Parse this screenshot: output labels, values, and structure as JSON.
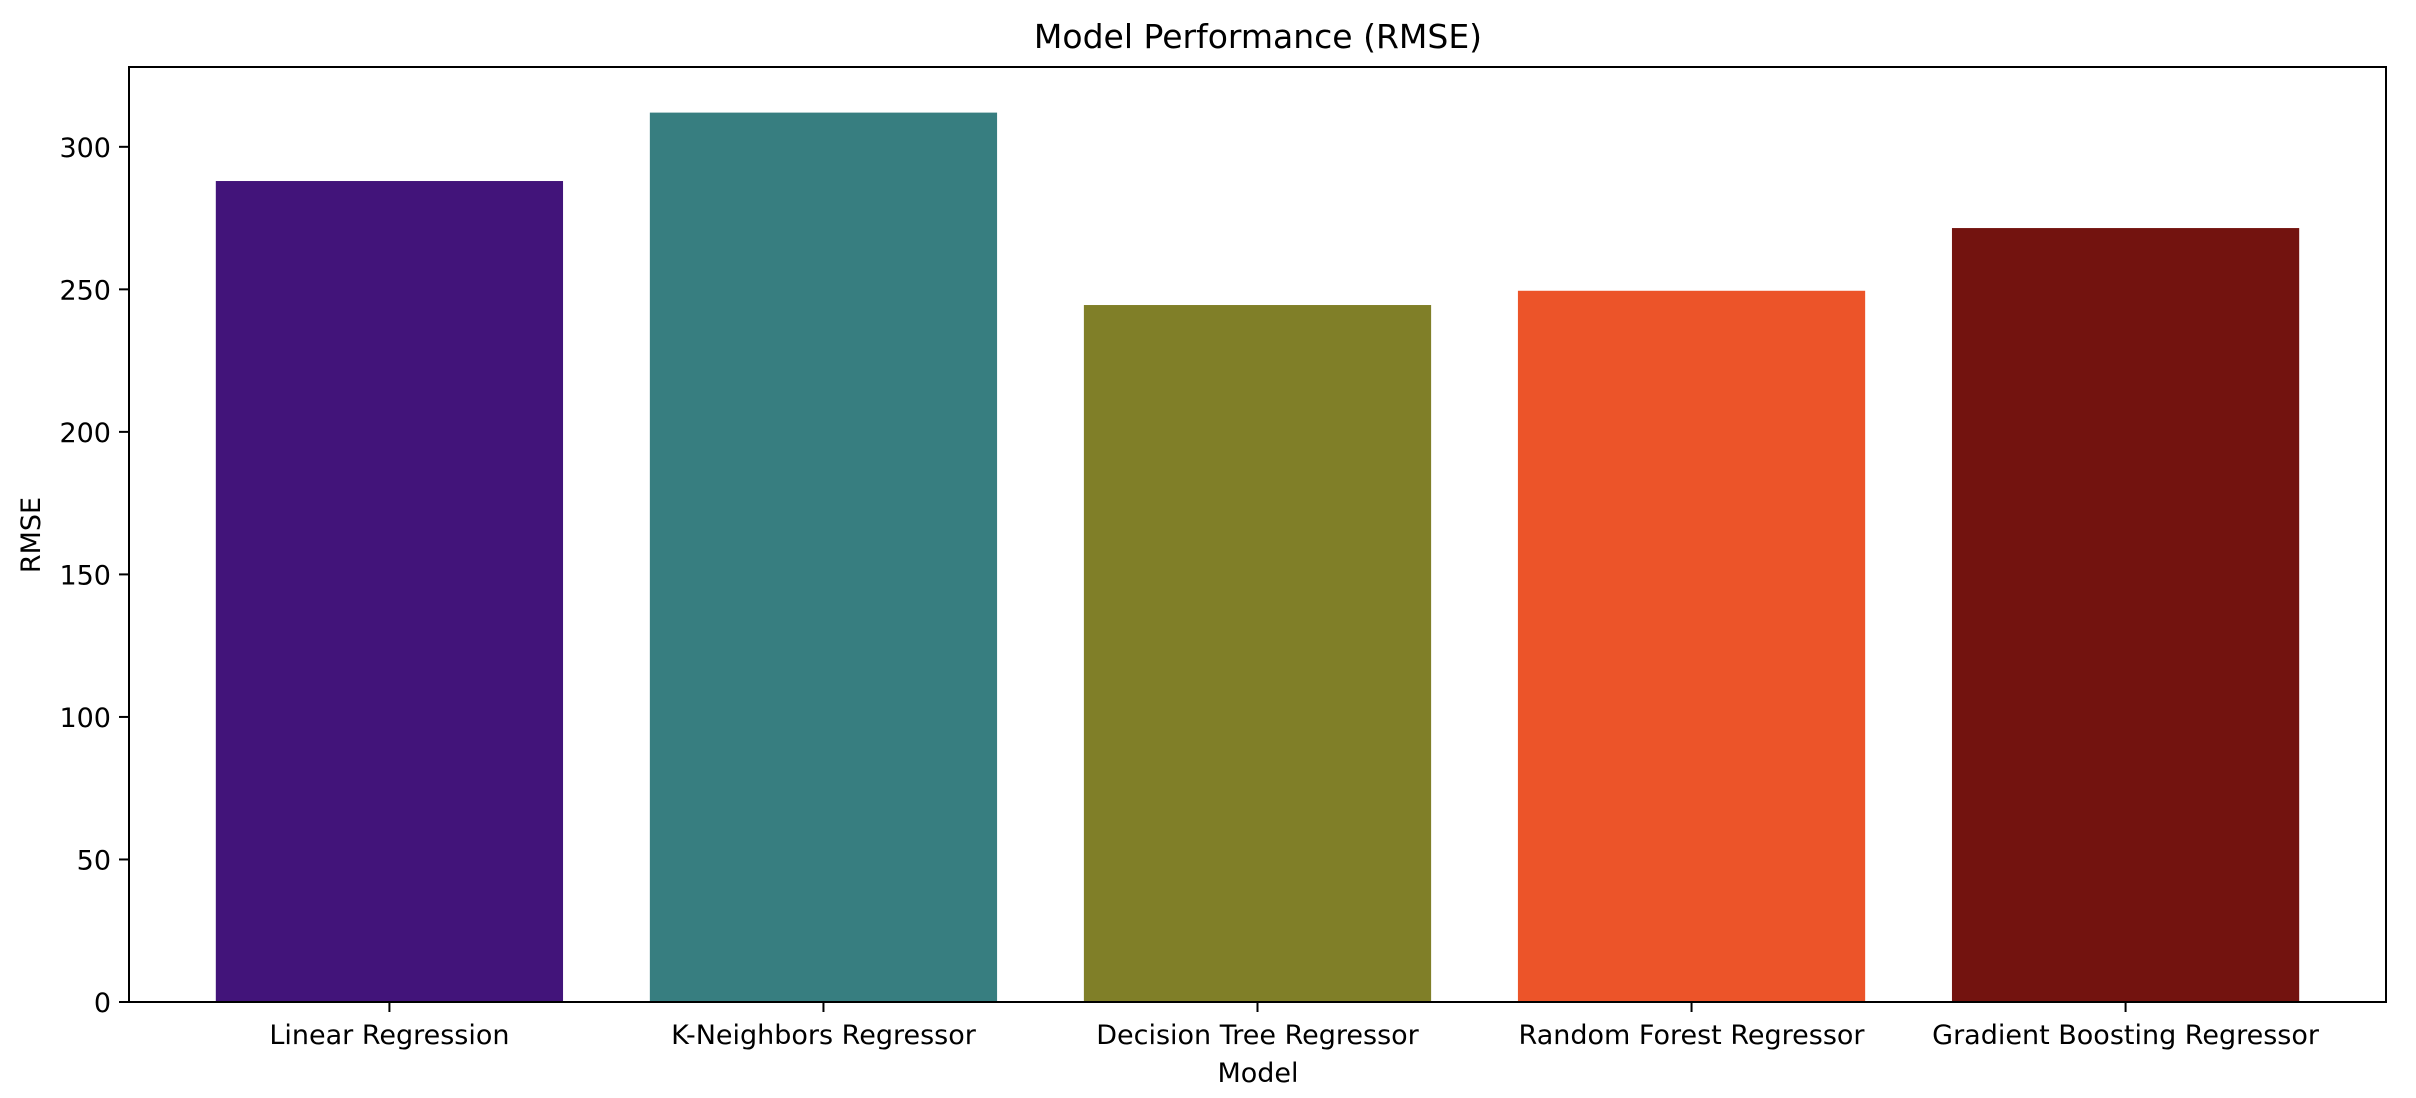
{
  "chart_data": {
    "type": "bar",
    "title": "Model Performance (RMSE)",
    "xlabel": "Model",
    "ylabel": "RMSE",
    "categories": [
      "Linear Regression",
      "K-Neighbors Regressor",
      "Decision Tree Regressor",
      "Random Forest Regressor",
      "Gradient Boosting Regressor"
    ],
    "values": [
      288,
      312,
      244.5,
      249.5,
      271.5
    ],
    "colors": [
      "#42147a",
      "#377e80",
      "#807f28",
      "#ec5429",
      "#73130f"
    ],
    "ylim": [
      0,
      328
    ],
    "yticks": [
      0,
      50,
      100,
      150,
      200,
      250,
      300
    ],
    "grid": false,
    "legend": "none"
  }
}
